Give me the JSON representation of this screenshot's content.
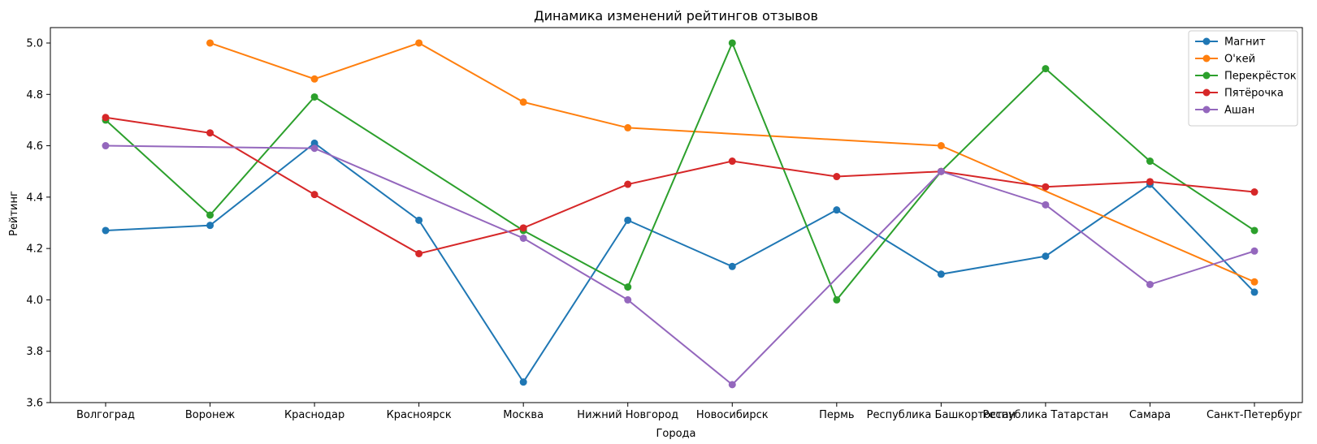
{
  "chart_data": {
    "type": "line",
    "title": "Динамика изменений рейтингов отзывов",
    "xlabel": "Города",
    "ylabel": "Рейтинг",
    "categories": [
      "Волгоград",
      "Воронеж",
      "Краснодар",
      "Красноярск",
      "Москва",
      "Нижний Новгород",
      "Новосибирск",
      "Пермь",
      "Республика Башкортостан",
      "Республика Татарстан",
      "Самара",
      "Санкт-Петербург"
    ],
    "ylim": [
      3.6,
      5.06
    ],
    "yticks": [
      "3.6",
      "3.8",
      "4.0",
      "4.2",
      "4.4",
      "4.6",
      "4.8",
      "5.0"
    ],
    "grid": false,
    "legend_position": "top-right",
    "series": [
      {
        "name": "Магнит",
        "color": "#1f77b4",
        "values": [
          4.27,
          4.29,
          4.61,
          4.31,
          3.68,
          4.31,
          4.13,
          4.35,
          4.1,
          4.17,
          4.45,
          4.03
        ]
      },
      {
        "name": "О'кей",
        "color": "#ff7f0e",
        "values": [
          null,
          5.0,
          4.86,
          5.0,
          4.77,
          4.67,
          null,
          null,
          4.6,
          null,
          null,
          4.07
        ]
      },
      {
        "name": "Перекрёсток",
        "color": "#2ca02c",
        "values": [
          4.7,
          4.33,
          4.79,
          null,
          4.27,
          4.05,
          5.0,
          4.0,
          4.5,
          4.9,
          4.54,
          4.27
        ]
      },
      {
        "name": "Пятёрочка",
        "color": "#d62728",
        "values": [
          4.71,
          4.65,
          4.41,
          4.18,
          4.28,
          4.45,
          4.54,
          4.48,
          4.5,
          4.44,
          4.46,
          4.42
        ]
      },
      {
        "name": "Ашан",
        "color": "#9467bd",
        "values": [
          4.6,
          null,
          4.59,
          null,
          4.24,
          4.0,
          3.67,
          null,
          4.5,
          4.37,
          4.06,
          4.19
        ]
      }
    ]
  }
}
